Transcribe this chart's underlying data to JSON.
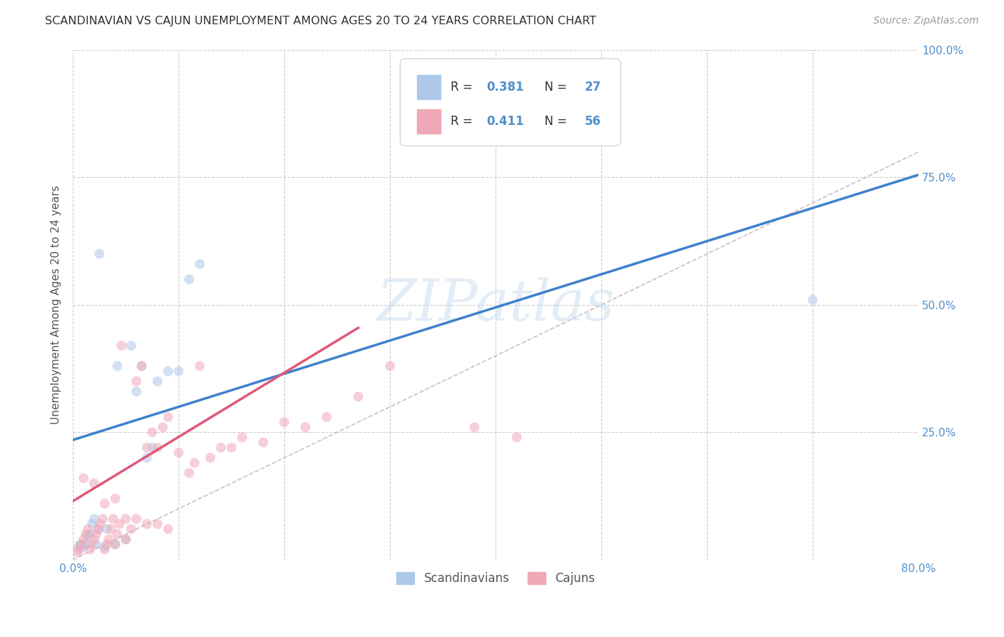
{
  "title": "SCANDINAVIAN VS CAJUN UNEMPLOYMENT AMONG AGES 20 TO 24 YEARS CORRELATION CHART",
  "source": "Source: ZipAtlas.com",
  "ylabel": "Unemployment Among Ages 20 to 24 years",
  "xlim": [
    0.0,
    0.8
  ],
  "ylim": [
    0.0,
    1.0
  ],
  "xticks": [
    0.0,
    0.1,
    0.2,
    0.3,
    0.4,
    0.5,
    0.6,
    0.7,
    0.8
  ],
  "xticklabels": [
    "0.0%",
    "",
    "",
    "",
    "",
    "",
    "",
    "",
    "80.0%"
  ],
  "yticks": [
    0.0,
    0.25,
    0.5,
    0.75,
    1.0
  ],
  "yticklabels_right": [
    "",
    "25.0%",
    "50.0%",
    "75.0%",
    "100.0%"
  ],
  "scandinavian_R": 0.381,
  "scandinavian_N": 27,
  "cajun_R": 0.411,
  "cajun_N": 56,
  "scandinavian_color": "#adc8e8",
  "cajun_color": "#f0a8b8",
  "scandinavian_line_color": "#4080cc",
  "cajun_line_color": "#e05878",
  "diagonal_color": "#c8b0b8",
  "tick_label_color": "#5090cc",
  "background_color": "#ffffff",
  "grid_color": "#c8c8c8",
  "title_color": "#333333",
  "watermark": "ZIPatlas",
  "scandinavian_x": [
    0.005,
    0.007,
    0.01,
    0.012,
    0.014,
    0.016,
    0.018,
    0.02,
    0.022,
    0.024,
    0.03,
    0.032,
    0.04,
    0.042,
    0.05,
    0.055,
    0.06,
    0.065,
    0.07,
    0.075,
    0.08,
    0.09,
    0.1,
    0.11,
    0.12,
    0.7,
    0.025
  ],
  "scandinavian_y": [
    0.025,
    0.03,
    0.025,
    0.03,
    0.045,
    0.05,
    0.07,
    0.08,
    0.03,
    0.06,
    0.025,
    0.06,
    0.03,
    0.38,
    0.04,
    0.42,
    0.33,
    0.38,
    0.2,
    0.22,
    0.35,
    0.37,
    0.37,
    0.55,
    0.58,
    0.51,
    0.6
  ],
  "cajun_x": [
    0.004,
    0.006,
    0.008,
    0.01,
    0.012,
    0.014,
    0.016,
    0.018,
    0.02,
    0.022,
    0.024,
    0.026,
    0.028,
    0.03,
    0.032,
    0.034,
    0.036,
    0.038,
    0.04,
    0.042,
    0.044,
    0.046,
    0.05,
    0.055,
    0.06,
    0.065,
    0.07,
    0.075,
    0.08,
    0.085,
    0.09,
    0.1,
    0.11,
    0.115,
    0.12,
    0.13,
    0.14,
    0.15,
    0.16,
    0.18,
    0.2,
    0.22,
    0.24,
    0.27,
    0.3,
    0.38,
    0.01,
    0.02,
    0.03,
    0.04,
    0.05,
    0.06,
    0.07,
    0.08,
    0.09,
    0.42
  ],
  "cajun_y": [
    0.015,
    0.02,
    0.03,
    0.04,
    0.05,
    0.06,
    0.02,
    0.03,
    0.04,
    0.05,
    0.06,
    0.07,
    0.08,
    0.02,
    0.03,
    0.04,
    0.06,
    0.08,
    0.03,
    0.05,
    0.07,
    0.42,
    0.04,
    0.06,
    0.35,
    0.38,
    0.22,
    0.25,
    0.22,
    0.26,
    0.28,
    0.21,
    0.17,
    0.19,
    0.38,
    0.2,
    0.22,
    0.22,
    0.24,
    0.23,
    0.27,
    0.26,
    0.28,
    0.32,
    0.38,
    0.26,
    0.16,
    0.15,
    0.11,
    0.12,
    0.08,
    0.08,
    0.07,
    0.07,
    0.06,
    0.24
  ],
  "scand_line_x": [
    0.0,
    0.8
  ],
  "scand_line_y": [
    0.235,
    0.755
  ],
  "cajun_line_x": [
    0.0,
    0.27
  ],
  "cajun_line_y": [
    0.115,
    0.455
  ],
  "marker_size": 100,
  "marker_alpha": 0.55,
  "marker_lw": 0
}
